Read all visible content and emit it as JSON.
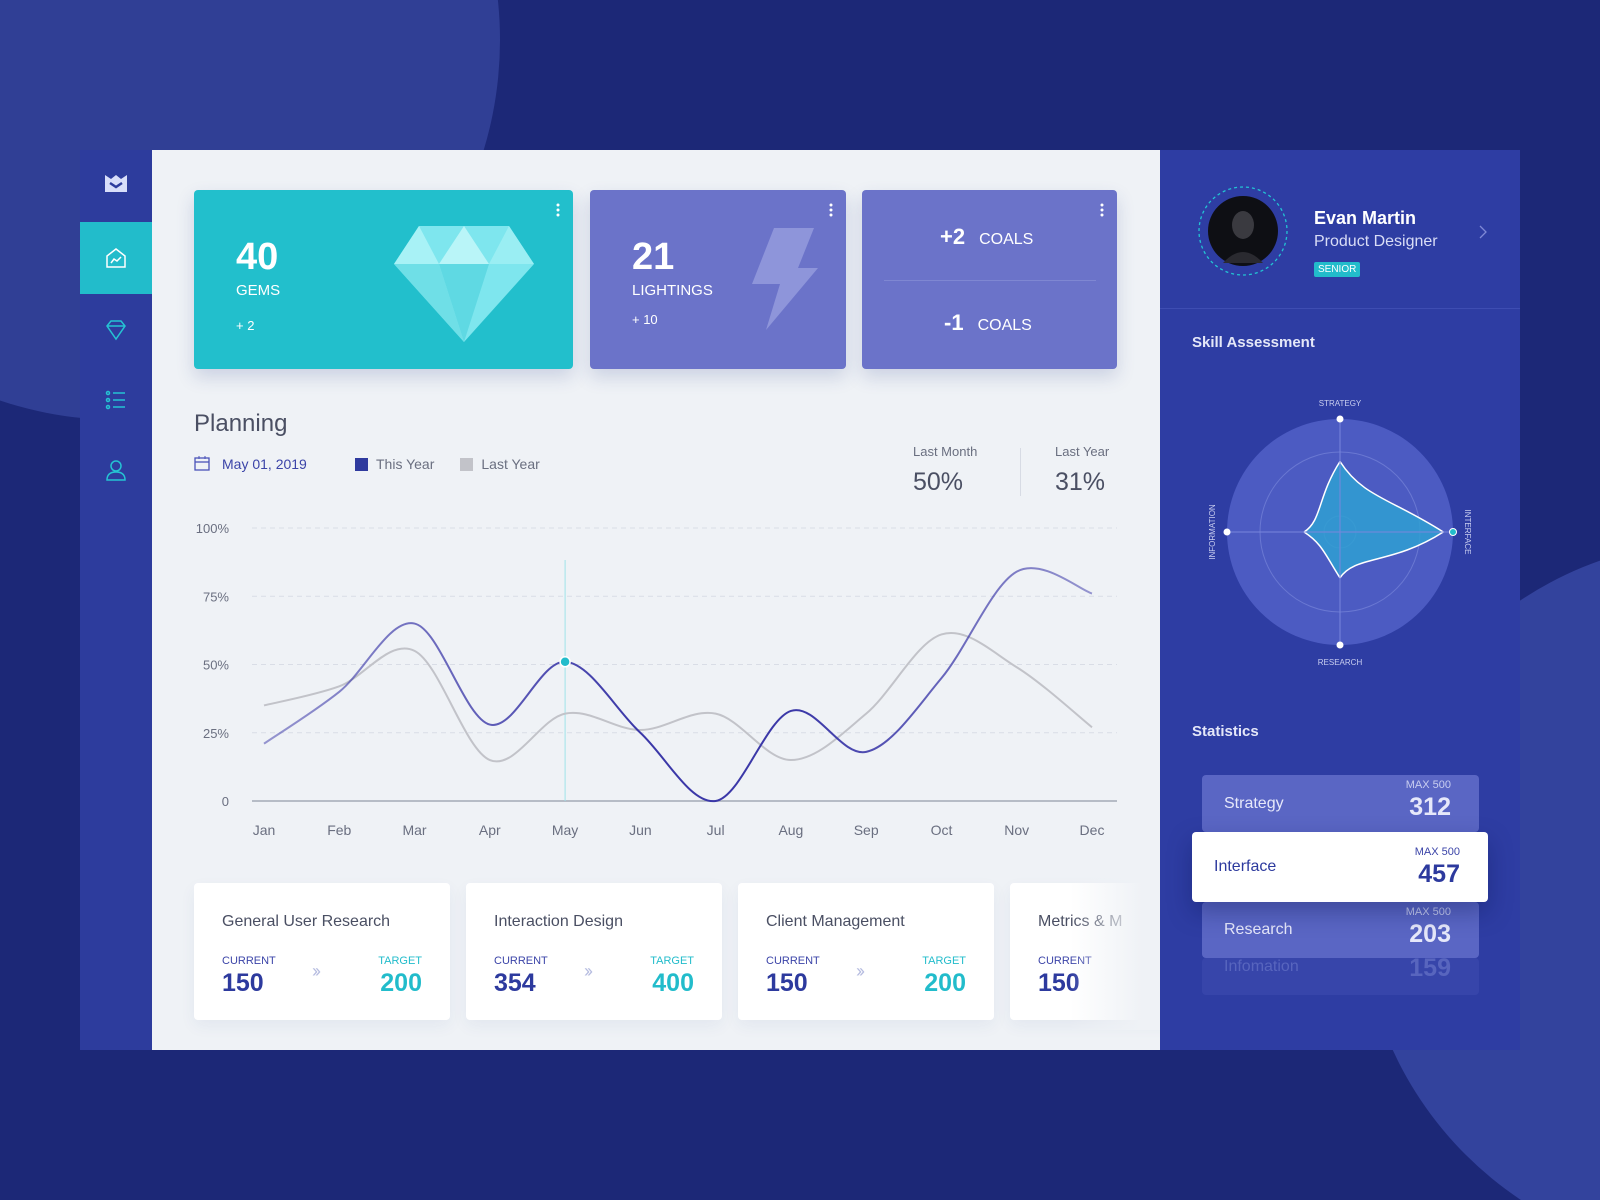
{
  "cards": {
    "gems": {
      "value": "40",
      "label": "GEMS",
      "change": "+ 2"
    },
    "lightings": {
      "value": "21",
      "label": "LIGHTINGS",
      "change": "+ 10"
    },
    "coals": [
      {
        "value": "+2",
        "label": "COALS"
      },
      {
        "value": "-1",
        "label": "COALS"
      }
    ]
  },
  "chart_data": {
    "type": "line",
    "title": "Planning",
    "date": "May 01, 2019",
    "categories": [
      "Jan",
      "Feb",
      "Mar",
      "Apr",
      "May",
      "Jun",
      "Jul",
      "Aug",
      "Sep",
      "Oct",
      "Nov",
      "Dec"
    ],
    "series": [
      {
        "name": "This Year",
        "color": "#3b38a8",
        "values": [
          21,
          40,
          65,
          28,
          51,
          25,
          0,
          33,
          18,
          45,
          84,
          76
        ]
      },
      {
        "name": "Last Year",
        "color": "#c2c3c9",
        "values": [
          35,
          42,
          55,
          15,
          32,
          26,
          32,
          15,
          32,
          61,
          49,
          27
        ]
      }
    ],
    "ylim": [
      0,
      100
    ],
    "yticks": [
      0,
      {
        "value": 25,
        "label": "25%"
      },
      {
        "value": 50,
        "label": "50%"
      },
      {
        "value": 75,
        "label": "75%"
      },
      {
        "value": 100,
        "label": "100%"
      }
    ],
    "grid": true
  },
  "comparison": [
    {
      "label": "Last Month",
      "value": "50%"
    },
    {
      "label": "Last Year",
      "value": "31%"
    }
  ],
  "goals": {
    "current_label": "CURRENT",
    "target_label": "TARGET",
    "items": [
      {
        "title": "General User Research",
        "current": "150",
        "target": "200"
      },
      {
        "title": "Interaction Design",
        "current": "354",
        "target": "400"
      },
      {
        "title": "Client Management",
        "current": "150",
        "target": "200"
      },
      {
        "title": "Metrics & M",
        "current": "150"
      }
    ]
  },
  "profile": {
    "name": "Evan Martin",
    "role": "Product Designer",
    "badge": "SENIOR"
  },
  "skill_assessment": {
    "title": "Skill Assessment",
    "axes": [
      "STRATEGY",
      "INTERFACE",
      "RESEARCH",
      "INFORMATION"
    ]
  },
  "statistics": {
    "title": "Statistics",
    "max": 500,
    "items": [
      {
        "name": "Strategy",
        "max_label": "MAX 500",
        "value": 312
      },
      {
        "name": "Interface",
        "max_label": "MAX 500",
        "value": 457
      },
      {
        "name": "Research",
        "max_label": "MAX 500",
        "value": 203
      },
      {
        "name": "Infomation",
        "value": 159
      }
    ]
  }
}
